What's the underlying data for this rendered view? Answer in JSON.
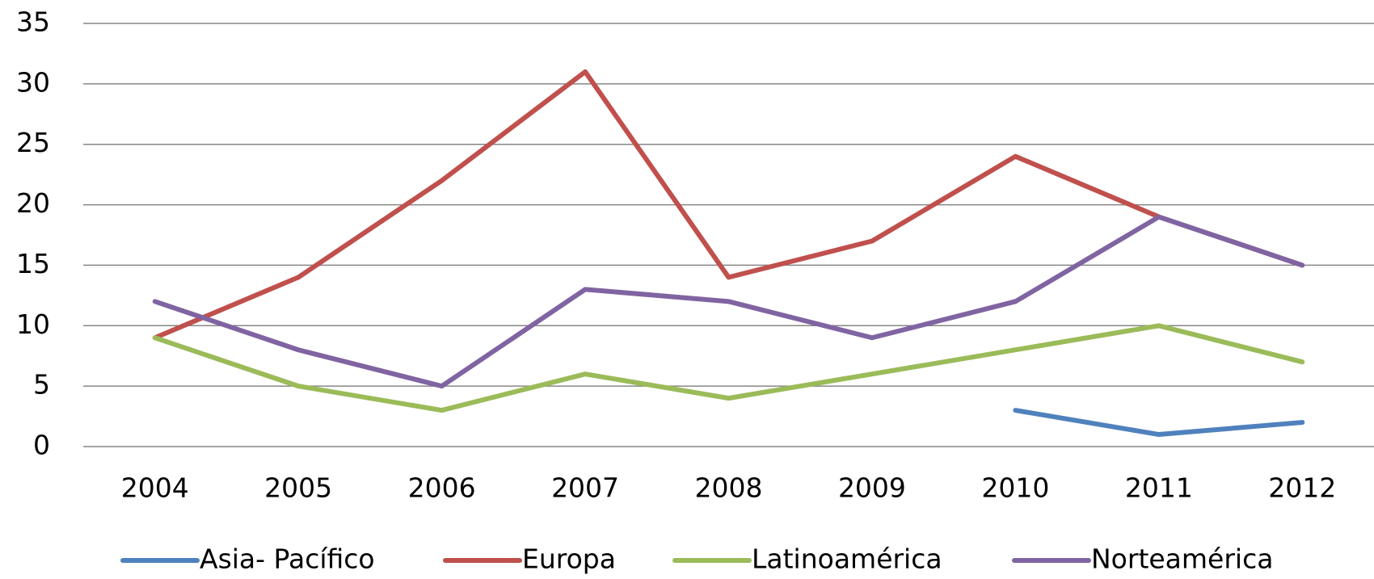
{
  "chart_data": {
    "type": "line",
    "categories": [
      "2004",
      "2005",
      "2006",
      "2007",
      "2008",
      "2009",
      "2010",
      "2011",
      "2012"
    ],
    "series": [
      {
        "name": "Asia- Pacífico",
        "color": "#4f81bd",
        "values": [
          null,
          null,
          null,
          null,
          null,
          null,
          3,
          1,
          2
        ]
      },
      {
        "name": "Europa",
        "color": "#c0504d",
        "values": [
          9,
          14,
          22,
          31,
          14,
          17,
          24,
          19,
          15
        ]
      },
      {
        "name": "Latinoamérica",
        "color": "#9bbb59",
        "values": [
          9,
          5,
          3,
          6,
          4,
          6,
          8,
          10,
          7
        ]
      },
      {
        "name": "Norteamérica",
        "color": "#8064a2",
        "values": [
          12,
          8,
          5,
          13,
          12,
          9,
          12,
          19,
          15
        ]
      }
    ],
    "ylim": [
      0,
      35
    ],
    "yticks": [
      0,
      5,
      10,
      15,
      20,
      25,
      30,
      35
    ],
    "grid": true,
    "legend": "bottom"
  }
}
